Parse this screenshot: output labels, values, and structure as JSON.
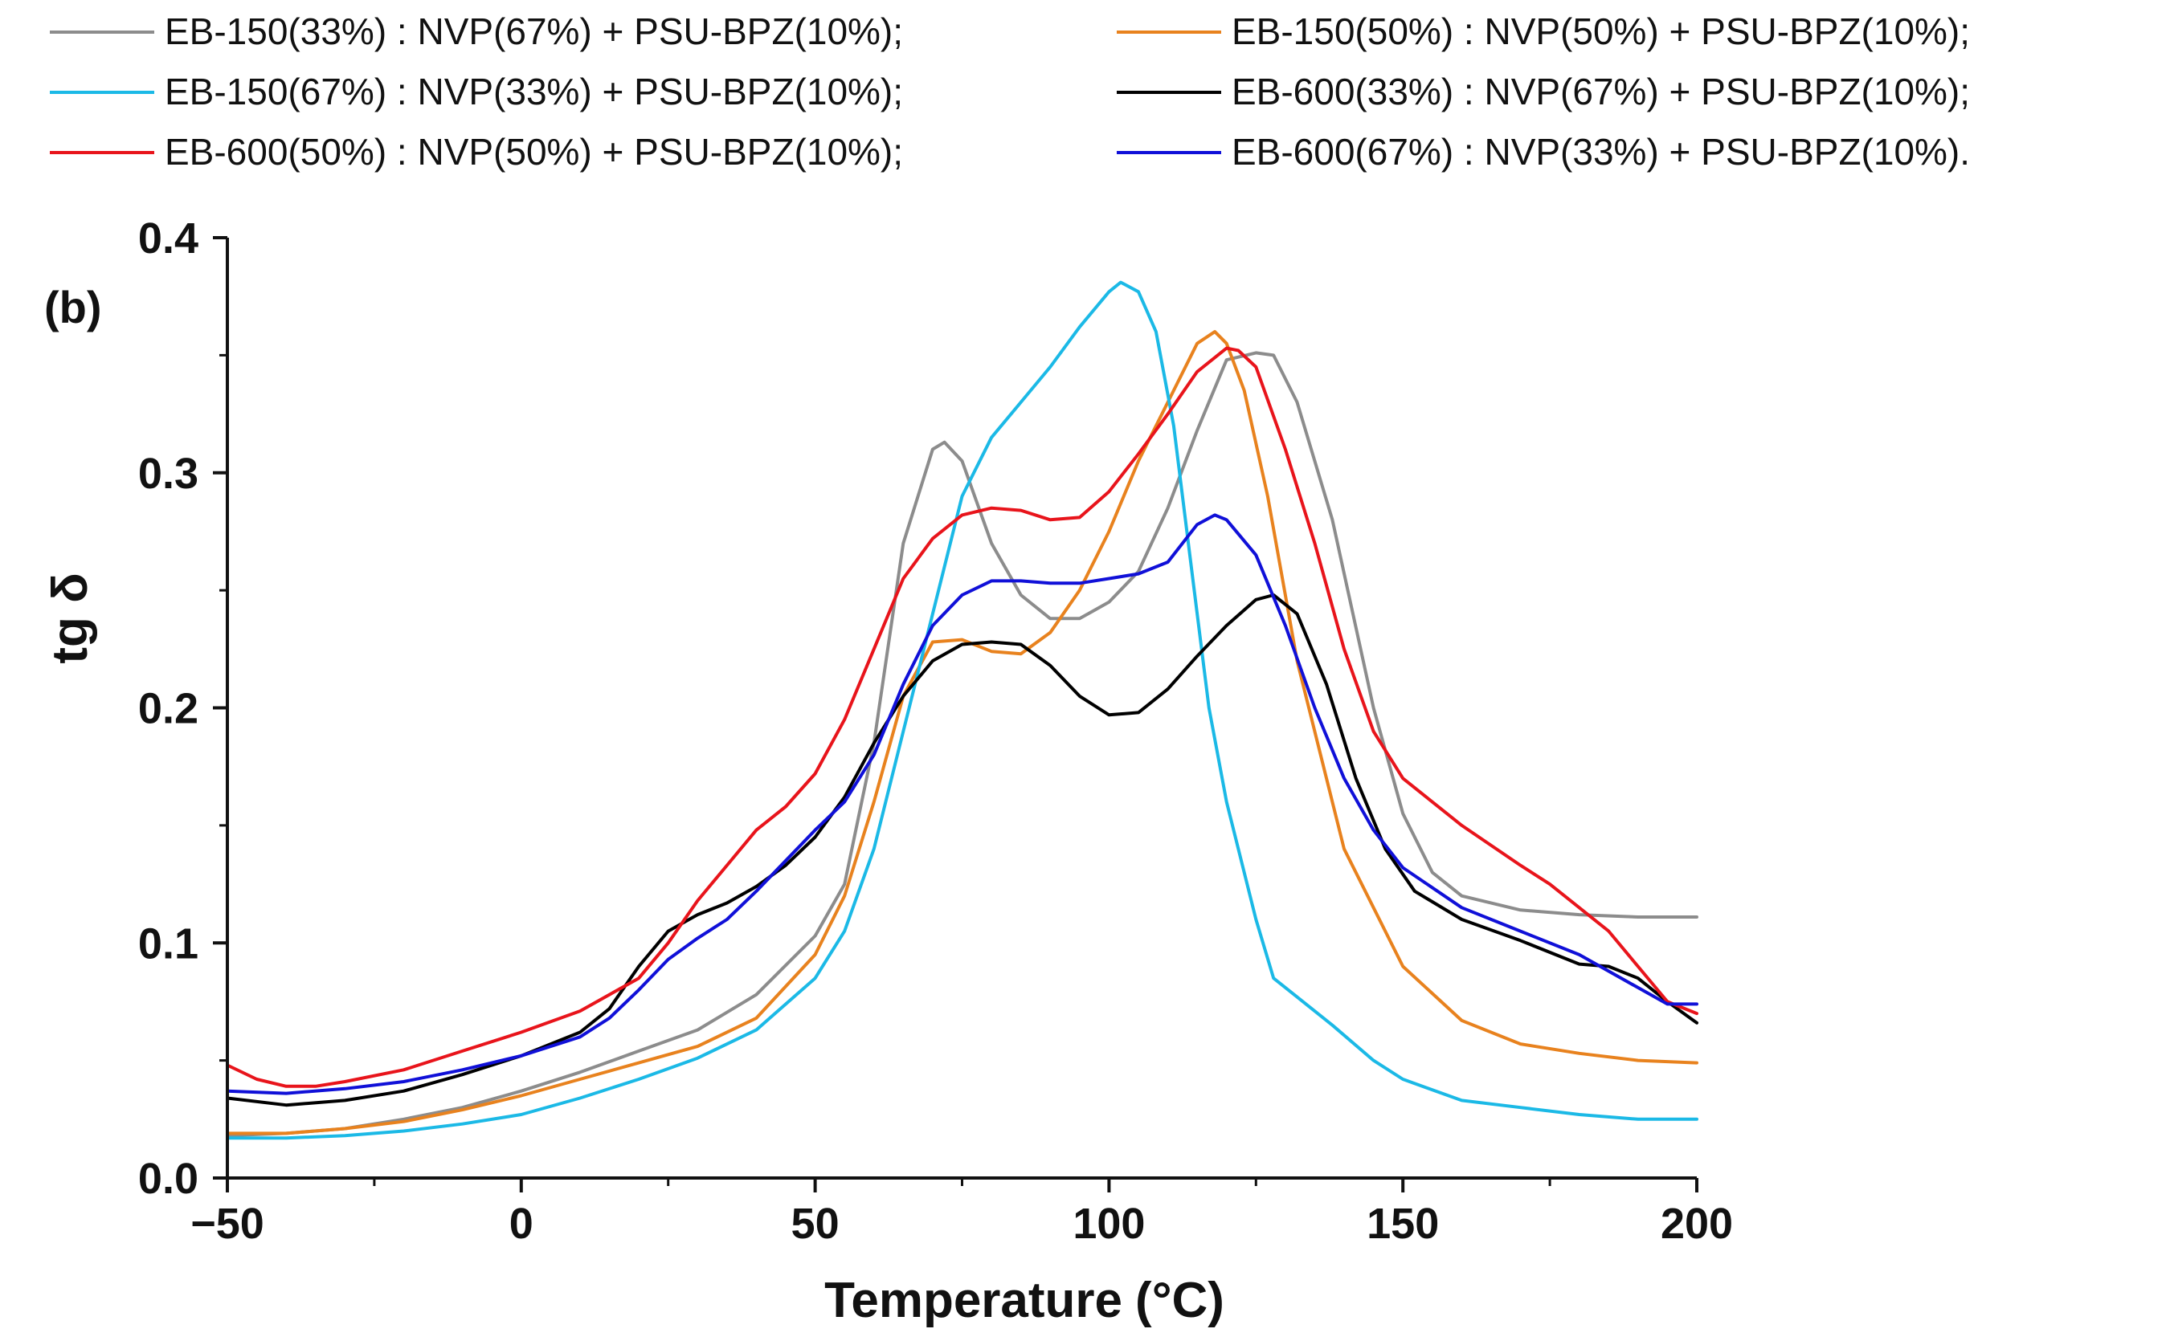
{
  "chart_data": {
    "type": "line",
    "panel_label": "(b)",
    "xlabel": "Temperature",
    "xlabel_unit": "(°C)",
    "ylabel": "tg δ",
    "xlim": [
      -50,
      200
    ],
    "ylim": [
      0.0,
      0.4
    ],
    "x_ticks": [
      -50,
      0,
      50,
      100,
      150,
      200
    ],
    "x_tick_labels": [
      "−50",
      "0",
      "50",
      "100",
      "150",
      "200"
    ],
    "y_ticks": [
      0.0,
      0.1,
      0.2,
      0.3,
      0.4
    ],
    "y_tick_labels": [
      "0.0",
      "0.1",
      "0.2",
      "0.3",
      "0.4"
    ],
    "legend_position": "top",
    "series": [
      {
        "name": "EB-150(33%) : NVP(67%) + PSU-BPZ(10%);",
        "color": "#8c8c8c",
        "points": [
          [
            -50,
            0.018
          ],
          [
            -40,
            0.019
          ],
          [
            -30,
            0.021
          ],
          [
            -20,
            0.025
          ],
          [
            -10,
            0.03
          ],
          [
            0,
            0.037
          ],
          [
            10,
            0.045
          ],
          [
            20,
            0.054
          ],
          [
            30,
            0.063
          ],
          [
            40,
            0.078
          ],
          [
            50,
            0.103
          ],
          [
            55,
            0.125
          ],
          [
            60,
            0.185
          ],
          [
            65,
            0.27
          ],
          [
            70,
            0.31
          ],
          [
            72,
            0.313
          ],
          [
            75,
            0.305
          ],
          [
            80,
            0.27
          ],
          [
            85,
            0.248
          ],
          [
            90,
            0.238
          ],
          [
            95,
            0.238
          ],
          [
            100,
            0.245
          ],
          [
            105,
            0.258
          ],
          [
            110,
            0.285
          ],
          [
            115,
            0.318
          ],
          [
            120,
            0.348
          ],
          [
            125,
            0.351
          ],
          [
            128,
            0.35
          ],
          [
            132,
            0.33
          ],
          [
            138,
            0.28
          ],
          [
            145,
            0.2
          ],
          [
            150,
            0.155
          ],
          [
            155,
            0.13
          ],
          [
            160,
            0.12
          ],
          [
            170,
            0.114
          ],
          [
            180,
            0.112
          ],
          [
            190,
            0.111
          ],
          [
            200,
            0.111
          ]
        ]
      },
      {
        "name": "EB-150(50%) : NVP(50%) + PSU-BPZ(10%);",
        "color": "#e8821e",
        "points": [
          [
            -50,
            0.019
          ],
          [
            -40,
            0.019
          ],
          [
            -30,
            0.021
          ],
          [
            -20,
            0.024
          ],
          [
            -10,
            0.029
          ],
          [
            0,
            0.035
          ],
          [
            10,
            0.042
          ],
          [
            20,
            0.049
          ],
          [
            30,
            0.056
          ],
          [
            40,
            0.068
          ],
          [
            50,
            0.095
          ],
          [
            55,
            0.12
          ],
          [
            60,
            0.16
          ],
          [
            65,
            0.205
          ],
          [
            70,
            0.228
          ],
          [
            75,
            0.229
          ],
          [
            80,
            0.224
          ],
          [
            85,
            0.223
          ],
          [
            90,
            0.232
          ],
          [
            95,
            0.25
          ],
          [
            100,
            0.275
          ],
          [
            105,
            0.305
          ],
          [
            110,
            0.33
          ],
          [
            115,
            0.355
          ],
          [
            118,
            0.36
          ],
          [
            120,
            0.355
          ],
          [
            123,
            0.335
          ],
          [
            127,
            0.29
          ],
          [
            132,
            0.22
          ],
          [
            140,
            0.14
          ],
          [
            150,
            0.09
          ],
          [
            160,
            0.067
          ],
          [
            170,
            0.057
          ],
          [
            180,
            0.053
          ],
          [
            190,
            0.05
          ],
          [
            200,
            0.049
          ]
        ]
      },
      {
        "name": "EB-150(67%) : NVP(33%) + PSU-BPZ(10%);",
        "color": "#1bb9e6",
        "points": [
          [
            -50,
            0.017
          ],
          [
            -40,
            0.017
          ],
          [
            -30,
            0.018
          ],
          [
            -20,
            0.02
          ],
          [
            -10,
            0.023
          ],
          [
            0,
            0.027
          ],
          [
            10,
            0.034
          ],
          [
            20,
            0.042
          ],
          [
            30,
            0.051
          ],
          [
            40,
            0.063
          ],
          [
            50,
            0.085
          ],
          [
            55,
            0.105
          ],
          [
            60,
            0.14
          ],
          [
            65,
            0.19
          ],
          [
            70,
            0.24
          ],
          [
            75,
            0.29
          ],
          [
            80,
            0.315
          ],
          [
            85,
            0.33
          ],
          [
            90,
            0.345
          ],
          [
            95,
            0.362
          ],
          [
            100,
            0.377
          ],
          [
            102,
            0.381
          ],
          [
            105,
            0.377
          ],
          [
            108,
            0.36
          ],
          [
            111,
            0.32
          ],
          [
            114,
            0.26
          ],
          [
            117,
            0.2
          ],
          [
            120,
            0.16
          ],
          [
            125,
            0.11
          ],
          [
            128,
            0.085
          ],
          [
            132,
            0.077
          ],
          [
            138,
            0.065
          ],
          [
            145,
            0.05
          ],
          [
            150,
            0.042
          ],
          [
            160,
            0.033
          ],
          [
            170,
            0.03
          ],
          [
            180,
            0.027
          ],
          [
            190,
            0.025
          ],
          [
            200,
            0.025
          ]
        ]
      },
      {
        "name": "EB-600(33%) : NVP(67%) + PSU-BPZ(10%);",
        "color": "#000000",
        "points": [
          [
            -50,
            0.034
          ],
          [
            -40,
            0.031
          ],
          [
            -30,
            0.033
          ],
          [
            -20,
            0.037
          ],
          [
            -10,
            0.044
          ],
          [
            0,
            0.052
          ],
          [
            10,
            0.062
          ],
          [
            15,
            0.072
          ],
          [
            20,
            0.09
          ],
          [
            25,
            0.105
          ],
          [
            30,
            0.112
          ],
          [
            35,
            0.117
          ],
          [
            40,
            0.124
          ],
          [
            45,
            0.133
          ],
          [
            50,
            0.145
          ],
          [
            55,
            0.162
          ],
          [
            60,
            0.185
          ],
          [
            65,
            0.205
          ],
          [
            70,
            0.22
          ],
          [
            75,
            0.227
          ],
          [
            80,
            0.228
          ],
          [
            85,
            0.227
          ],
          [
            90,
            0.218
          ],
          [
            95,
            0.205
          ],
          [
            100,
            0.197
          ],
          [
            105,
            0.198
          ],
          [
            110,
            0.208
          ],
          [
            115,
            0.222
          ],
          [
            120,
            0.235
          ],
          [
            125,
            0.246
          ],
          [
            128,
            0.248
          ],
          [
            132,
            0.24
          ],
          [
            137,
            0.21
          ],
          [
            142,
            0.17
          ],
          [
            147,
            0.14
          ],
          [
            152,
            0.122
          ],
          [
            160,
            0.11
          ],
          [
            170,
            0.101
          ],
          [
            180,
            0.091
          ],
          [
            185,
            0.09
          ],
          [
            190,
            0.085
          ],
          [
            195,
            0.075
          ],
          [
            200,
            0.066
          ]
        ]
      },
      {
        "name": "EB-600(50%) : NVP(50%) + PSU-BPZ(10%);",
        "color": "#e8141b",
        "points": [
          [
            -50,
            0.048
          ],
          [
            -45,
            0.042
          ],
          [
            -40,
            0.039
          ],
          [
            -35,
            0.039
          ],
          [
            -30,
            0.041
          ],
          [
            -20,
            0.046
          ],
          [
            -10,
            0.054
          ],
          [
            0,
            0.062
          ],
          [
            10,
            0.071
          ],
          [
            20,
            0.085
          ],
          [
            25,
            0.1
          ],
          [
            30,
            0.118
          ],
          [
            35,
            0.133
          ],
          [
            40,
            0.148
          ],
          [
            45,
            0.158
          ],
          [
            50,
            0.172
          ],
          [
            55,
            0.195
          ],
          [
            60,
            0.225
          ],
          [
            65,
            0.255
          ],
          [
            70,
            0.272
          ],
          [
            75,
            0.282
          ],
          [
            80,
            0.285
          ],
          [
            85,
            0.284
          ],
          [
            90,
            0.28
          ],
          [
            95,
            0.281
          ],
          [
            100,
            0.292
          ],
          [
            105,
            0.308
          ],
          [
            110,
            0.325
          ],
          [
            115,
            0.343
          ],
          [
            120,
            0.353
          ],
          [
            122,
            0.352
          ],
          [
            125,
            0.345
          ],
          [
            130,
            0.31
          ],
          [
            135,
            0.27
          ],
          [
            140,
            0.225
          ],
          [
            145,
            0.19
          ],
          [
            150,
            0.17
          ],
          [
            160,
            0.15
          ],
          [
            170,
            0.133
          ],
          [
            175,
            0.125
          ],
          [
            180,
            0.115
          ],
          [
            185,
            0.105
          ],
          [
            190,
            0.09
          ],
          [
            195,
            0.075
          ],
          [
            200,
            0.07
          ]
        ]
      },
      {
        "name": "EB-600(67%) : NVP(33%) + PSU-BPZ(10%).",
        "color": "#1010d8",
        "points": [
          [
            -50,
            0.037
          ],
          [
            -40,
            0.036
          ],
          [
            -30,
            0.038
          ],
          [
            -20,
            0.041
          ],
          [
            -10,
            0.046
          ],
          [
            0,
            0.052
          ],
          [
            10,
            0.06
          ],
          [
            15,
            0.068
          ],
          [
            20,
            0.08
          ],
          [
            25,
            0.093
          ],
          [
            30,
            0.102
          ],
          [
            35,
            0.11
          ],
          [
            40,
            0.122
          ],
          [
            45,
            0.135
          ],
          [
            50,
            0.148
          ],
          [
            55,
            0.16
          ],
          [
            60,
            0.18
          ],
          [
            65,
            0.21
          ],
          [
            70,
            0.235
          ],
          [
            75,
            0.248
          ],
          [
            80,
            0.254
          ],
          [
            85,
            0.254
          ],
          [
            90,
            0.253
          ],
          [
            95,
            0.253
          ],
          [
            100,
            0.255
          ],
          [
            105,
            0.257
          ],
          [
            110,
            0.262
          ],
          [
            115,
            0.278
          ],
          [
            118,
            0.282
          ],
          [
            120,
            0.28
          ],
          [
            125,
            0.265
          ],
          [
            130,
            0.235
          ],
          [
            135,
            0.2
          ],
          [
            140,
            0.17
          ],
          [
            145,
            0.148
          ],
          [
            150,
            0.132
          ],
          [
            160,
            0.115
          ],
          [
            170,
            0.105
          ],
          [
            180,
            0.095
          ],
          [
            190,
            0.081
          ],
          [
            195,
            0.074
          ],
          [
            200,
            0.074
          ]
        ]
      }
    ]
  }
}
